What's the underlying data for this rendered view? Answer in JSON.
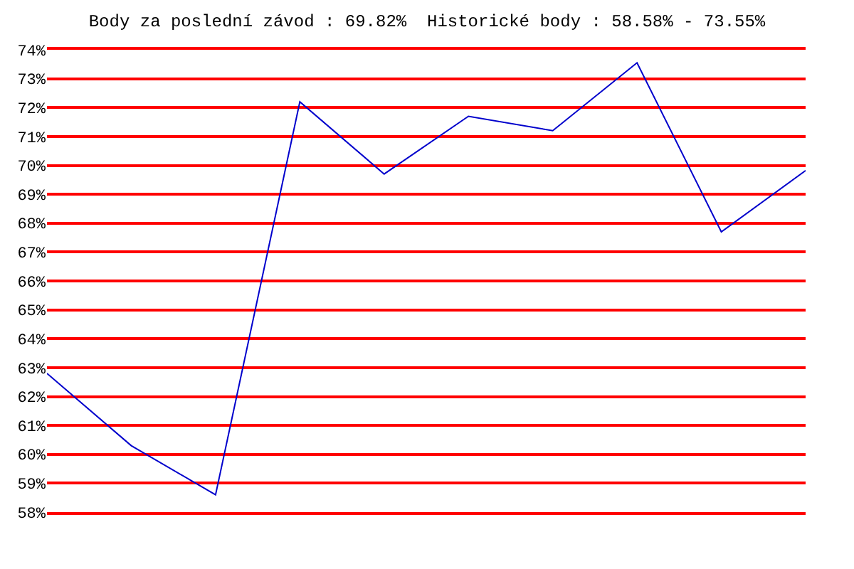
{
  "chart_data": {
    "type": "line",
    "title": "Body za poslední závod : 69.82%  Historické body : 58.58% - 73.55%",
    "categories": [
      null,
      null,
      null,
      null,
      null,
      null,
      null,
      null,
      null,
      null
    ],
    "series": [
      {
        "color": "#0000cc",
        "values": [
          62.8,
          60.3,
          58.6,
          72.2,
          69.7,
          71.7,
          71.2,
          73.55,
          67.7,
          69.82
        ]
      }
    ],
    "ylim": [
      58,
      74
    ],
    "yticks": [
      {
        "value": 58,
        "label": "58%"
      },
      {
        "value": 59,
        "label": "59%"
      },
      {
        "value": 60,
        "label": "60%"
      },
      {
        "value": 61,
        "label": "61%"
      },
      {
        "value": 62,
        "label": "62%"
      },
      {
        "value": 63,
        "label": "63%"
      },
      {
        "value": 64,
        "label": "64%"
      },
      {
        "value": 65,
        "label": "65%"
      },
      {
        "value": 66,
        "label": "66%"
      },
      {
        "value": 67,
        "label": "67%"
      },
      {
        "value": 68,
        "label": "68%"
      },
      {
        "value": 69,
        "label": "69%"
      },
      {
        "value": 70,
        "label": "70%"
      },
      {
        "value": 71,
        "label": "71%"
      },
      {
        "value": 72,
        "label": "72%"
      },
      {
        "value": 73,
        "label": "73%"
      },
      {
        "value": 74,
        "label": "74%"
      }
    ],
    "grid": "y"
  }
}
